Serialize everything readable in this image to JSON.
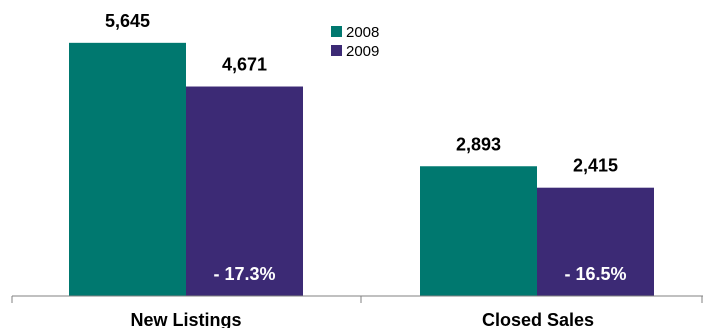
{
  "chart_data": {
    "type": "bar",
    "title": "",
    "xlabel": "",
    "ylabel": "",
    "categories": [
      "New Listings",
      "Closed Sales"
    ],
    "series": [
      {
        "name": "2008",
        "values": [
          5645,
          2893
        ],
        "value_labels": [
          "5,645",
          "2,893"
        ],
        "color": "#00786f"
      },
      {
        "name": "2009",
        "values": [
          4671,
          2415
        ],
        "value_labels": [
          "4,671",
          "2,415"
        ],
        "color": "#3c2a75"
      }
    ],
    "change_labels": [
      "- 17.3%",
      "- 16.5%"
    ],
    "ylim": [
      0,
      6600
    ],
    "grid": false,
    "legend": "top-center"
  }
}
